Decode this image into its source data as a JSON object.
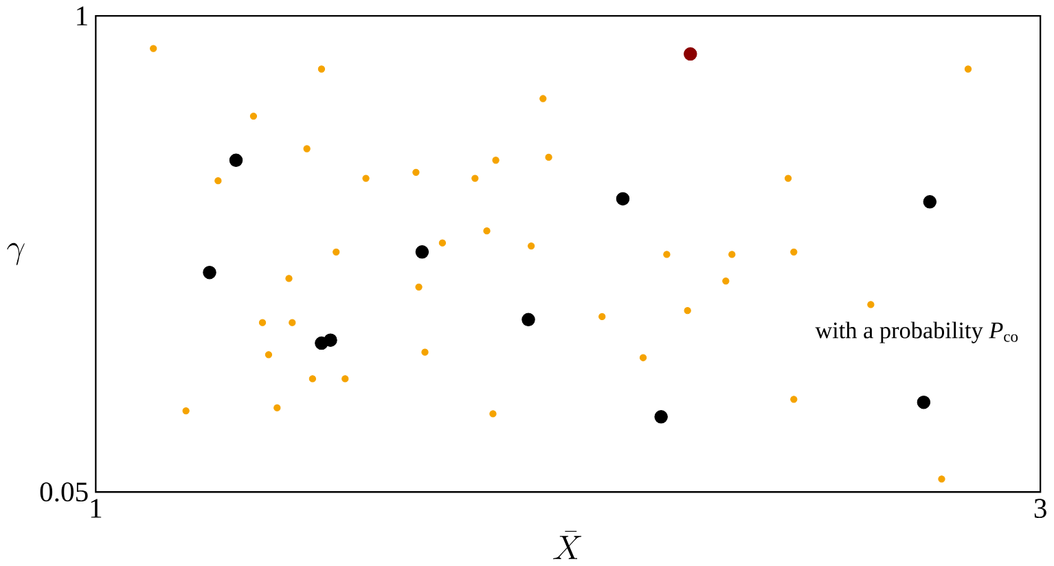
{
  "chart_data": {
    "type": "scatter",
    "xlabel": "\\bar{X}",
    "ylabel": "\\gamma",
    "xlim": [
      1,
      3
    ],
    "ylim": [
      0.05,
      1
    ],
    "xticks": [
      1,
      3
    ],
    "yticks": [
      0.05,
      1
    ],
    "annotations": [
      "with a probability *P*$_{co}$"
    ],
    "series": [
      {
        "color": "#f5a300",
        "x": [
          1.122,
          1.478,
          2.847,
          1.947,
          1.334,
          1.447,
          1.847,
          1.959,
          1.259,
          1.572,
          1.678,
          1.803,
          2.466,
          1.828,
          1.734,
          1.509,
          1.922,
          2.209,
          2.347,
          2.478,
          1.409,
          1.684,
          2.334,
          2.253,
          2.641,
          2.072,
          1.353,
          1.416,
          1.366,
          1.697,
          2.159,
          1.459,
          1.528,
          1.191,
          1.384,
          1.841,
          2.478,
          2.791
        ],
        "values": [
          0.935,
          0.894,
          0.894,
          0.835,
          0.8,
          0.735,
          0.712,
          0.718,
          0.671,
          0.676,
          0.688,
          0.676,
          0.676,
          0.571,
          0.547,
          0.529,
          0.541,
          0.524,
          0.524,
          0.529,
          0.476,
          0.459,
          0.471,
          0.412,
          0.424,
          0.4,
          0.388,
          0.388,
          0.324,
          0.329,
          0.318,
          0.276,
          0.276,
          0.212,
          0.218,
          0.206,
          0.235,
          0.076
        ]
      },
      {
        "color": "#000000",
        "x": [
          1.297,
          1.241,
          1.691,
          1.478,
          1.497,
          1.916,
          2.116,
          2.766,
          2.197,
          2.753
        ],
        "values": [
          0.712,
          0.488,
          0.529,
          0.347,
          0.353,
          0.394,
          0.635,
          0.629,
          0.2,
          0.229
        ]
      },
      {
        "color": "#8b0000",
        "x": [
          2.259
        ],
        "values": [
          0.924
        ]
      }
    ]
  }
}
